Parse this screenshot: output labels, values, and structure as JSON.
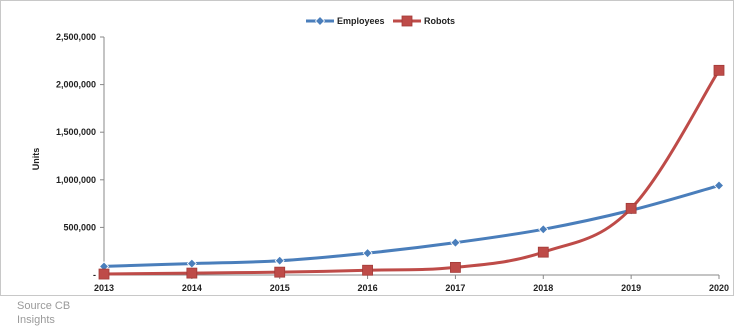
{
  "source_note": "Source CB Insights",
  "chart_data": {
    "type": "line",
    "title": "",
    "xlabel": "",
    "ylabel": "Units",
    "categories": [
      "2013",
      "2014",
      "2015",
      "2016",
      "2017",
      "2018",
      "2019",
      "2020"
    ],
    "ylim": [
      0,
      2500000
    ],
    "yticks": [
      0,
      500000,
      1000000,
      1500000,
      2000000,
      2500000
    ],
    "ytick_labels": [
      "-",
      "500,000",
      "1,000,000",
      "1,500,000",
      "2,000,000",
      "2,500,000"
    ],
    "grid": false,
    "legend_position": "top-center",
    "series": [
      {
        "name": "Employees",
        "color": "#4a7ebb",
        "marker": "diamond",
        "values": [
          90000,
          120000,
          150000,
          230000,
          340000,
          480000,
          680000,
          940000
        ]
      },
      {
        "name": "Robots",
        "color": "#be4b48",
        "marker": "square",
        "values": [
          10000,
          20000,
          30000,
          50000,
          80000,
          240000,
          700000,
          2150000
        ]
      }
    ]
  }
}
